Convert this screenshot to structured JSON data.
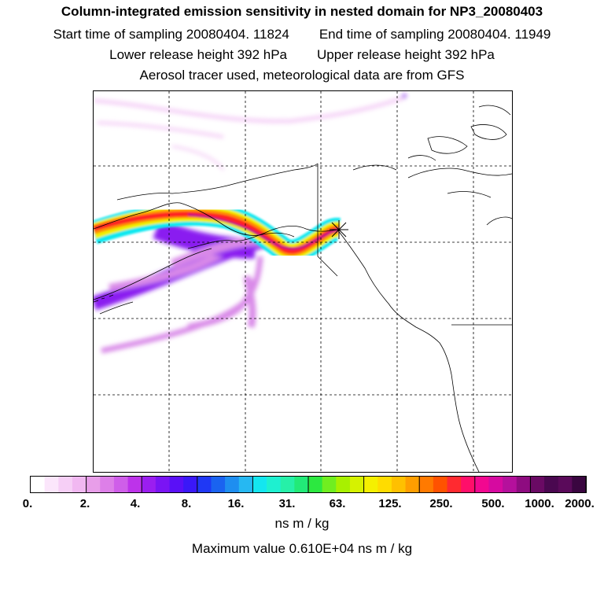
{
  "header": {
    "title": "Column-integrated emission sensitivity in nested domain for NP3_20080403",
    "start_time": "Start time of sampling 20080404. 11824",
    "end_time": "End time of sampling 20080404. 11949",
    "lower_height": "Lower release height  392 hPa",
    "upper_height": "Upper release height  392 hPa",
    "tracer_note": "Aerosol tracer used, meteorological data are from GFS"
  },
  "colorbar": {
    "tick_labels": [
      "0.",
      "2.",
      "4.",
      "8.",
      "16.",
      "31.",
      "63.",
      "125.",
      "250.",
      "500.",
      "1000.",
      "2000."
    ],
    "colors": [
      "#ffffff",
      "#fbe6fb",
      "#f6cff6",
      "#f1b8f1",
      "#e89ee9",
      "#dd7fe8",
      "#cf5ee9",
      "#bd33ea",
      "#9b1ef0",
      "#7a14f4",
      "#5a10f7",
      "#3a18f8",
      "#1f38f5",
      "#1a63f0",
      "#1e8ef0",
      "#26b8f2",
      "#14e6f0",
      "#1ef0d0",
      "#26f0a8",
      "#22ea78",
      "#2ce840",
      "#70ee20",
      "#a8f000",
      "#d6f200",
      "#f5f000",
      "#ffdc00",
      "#ffc000",
      "#ff9e00",
      "#ff7a00",
      "#ff5200",
      "#ff2a30",
      "#ff0e6a",
      "#f20890",
      "#d60aa0",
      "#b5109c",
      "#8e0c80",
      "#6a0a64",
      "#4a0850",
      "#5a0a5a",
      "#3a0640"
    ],
    "unit": "ns m / kg",
    "max_value": "Maximum value  0.610E+04 ns m / kg"
  },
  "map": {
    "receptor_marker": "receptor-star",
    "plume_colors": {
      "faint": "#f2c4f4",
      "low": "#d98ae8",
      "mid": "#8a1ef0",
      "cyan": "#10e8f0",
      "green": "#30e860",
      "yellow": "#f0f000",
      "orange": "#ff9000",
      "red": "#ff2020",
      "magenta": "#c0108c",
      "dark": "#3a0640"
    }
  }
}
